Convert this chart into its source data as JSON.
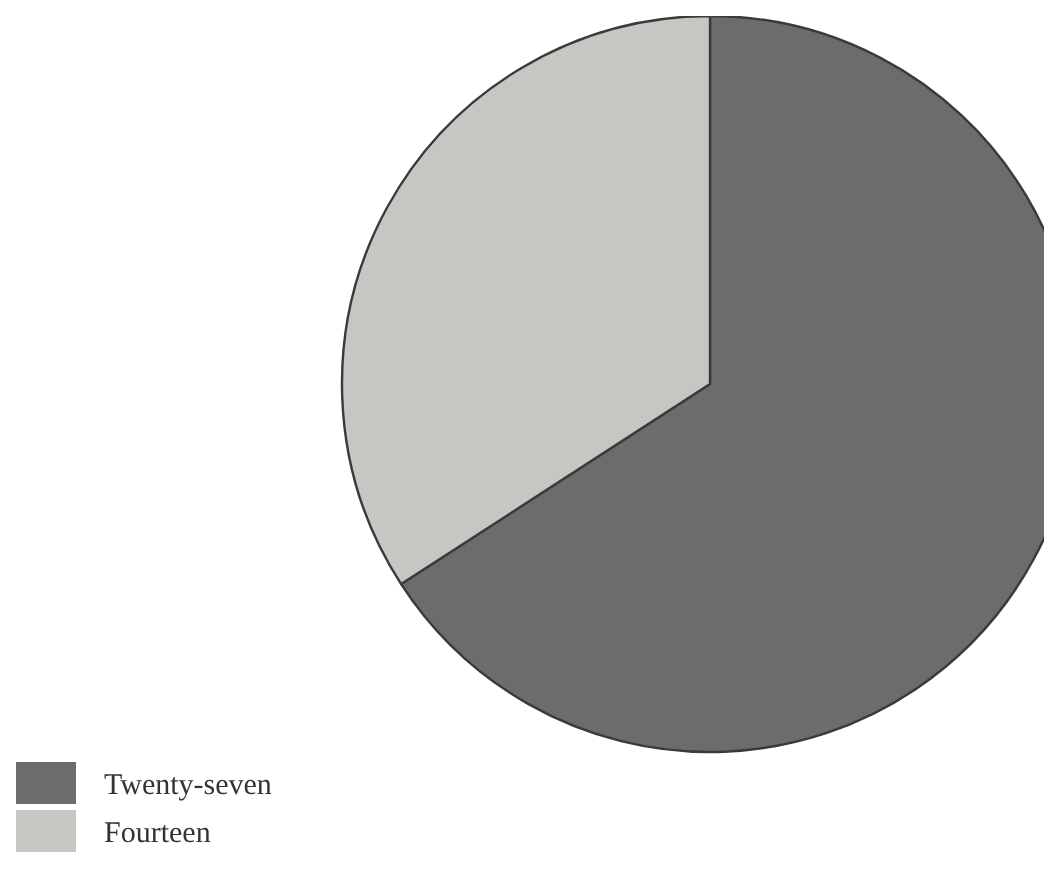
{
  "chart_data": {
    "type": "pie",
    "categories": [
      "Twenty-seven",
      "Fourteen"
    ],
    "values": [
      65.85,
      34.15
    ],
    "colors": [
      "#6c6c6e",
      "#c6c6c2"
    ],
    "legend": "bottom left"
  }
}
